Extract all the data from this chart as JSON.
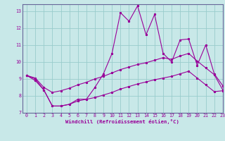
{
  "xlabel": "Windchill (Refroidissement éolien,°C)",
  "xlim": [
    -0.5,
    23
  ],
  "ylim": [
    7,
    13.4
  ],
  "xticks": [
    0,
    1,
    2,
    3,
    4,
    5,
    6,
    7,
    8,
    9,
    10,
    11,
    12,
    13,
    14,
    15,
    16,
    17,
    18,
    19,
    20,
    21,
    22,
    23
  ],
  "yticks": [
    7,
    8,
    9,
    10,
    11,
    12,
    13
  ],
  "bg_color": "#c8e8e8",
  "line_color": "#990099",
  "grid_color": "#99cccc",
  "spine_color": "#666699",
  "line1_x": [
    0,
    1,
    2,
    3,
    4,
    5,
    6,
    7,
    8,
    9,
    10,
    11,
    12,
    13,
    14,
    15,
    16,
    17,
    18,
    19,
    20,
    21,
    22,
    23
  ],
  "line1_y": [
    9.2,
    9.0,
    8.35,
    7.4,
    7.4,
    7.5,
    7.8,
    7.8,
    8.5,
    9.3,
    10.5,
    12.9,
    12.4,
    13.3,
    11.6,
    12.8,
    10.5,
    10.0,
    11.3,
    11.35,
    9.8,
    11.0,
    9.3,
    8.6
  ],
  "line2_x": [
    0,
    1,
    2,
    3,
    4,
    5,
    6,
    7,
    8,
    9,
    10,
    11,
    12,
    13,
    14,
    15,
    16,
    17,
    18,
    19,
    20,
    21,
    22,
    23
  ],
  "line2_y": [
    9.2,
    9.05,
    8.5,
    8.2,
    8.3,
    8.45,
    8.65,
    8.8,
    9.0,
    9.15,
    9.35,
    9.55,
    9.7,
    9.85,
    9.95,
    10.1,
    10.25,
    10.15,
    10.35,
    10.5,
    10.05,
    9.65,
    9.25,
    8.35
  ],
  "line3_x": [
    0,
    1,
    2,
    3,
    4,
    5,
    6,
    7,
    8,
    9,
    10,
    11,
    12,
    13,
    14,
    15,
    16,
    17,
    18,
    19,
    20,
    21,
    22,
    23
  ],
  "line3_y": [
    9.2,
    8.9,
    8.35,
    7.4,
    7.4,
    7.5,
    7.7,
    7.8,
    7.9,
    8.05,
    8.2,
    8.4,
    8.55,
    8.7,
    8.82,
    8.95,
    9.05,
    9.15,
    9.3,
    9.45,
    9.05,
    8.65,
    8.25,
    8.3
  ]
}
